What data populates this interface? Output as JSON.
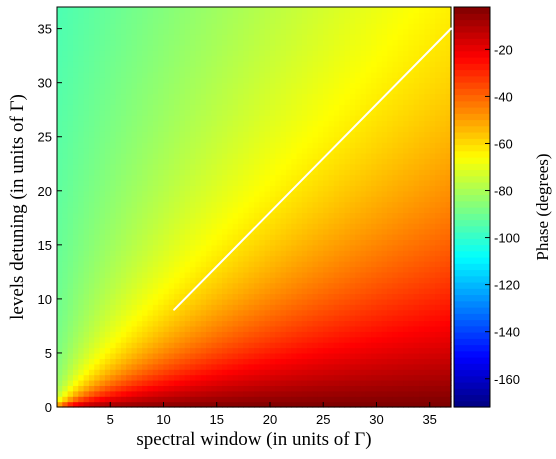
{
  "chart_data": {
    "type": "heatmap",
    "xlabel": "spectral window (in units of Γ)",
    "ylabel": "levels detuning (in units of Γ)",
    "colorbar_label": "Phase (degrees)",
    "xlim": [
      0,
      37
    ],
    "ylim": [
      0,
      37
    ],
    "x_ticks": [
      "5",
      "10",
      "15",
      "20",
      "25",
      "30",
      "35"
    ],
    "y_ticks": [
      "0",
      "5",
      "10",
      "15",
      "20",
      "25",
      "30",
      "35"
    ],
    "colorbar_range": [
      -172,
      -2
    ],
    "colorbar_ticks": [
      "-20",
      "-40",
      "-60",
      "-80",
      "-100",
      "-120",
      "-140",
      "-160"
    ],
    "colormap": "jet",
    "grid": false,
    "overlay_line": {
      "color": "#ffffff",
      "points": [
        [
          11,
          9
        ],
        [
          37,
          35
        ]
      ]
    }
  }
}
